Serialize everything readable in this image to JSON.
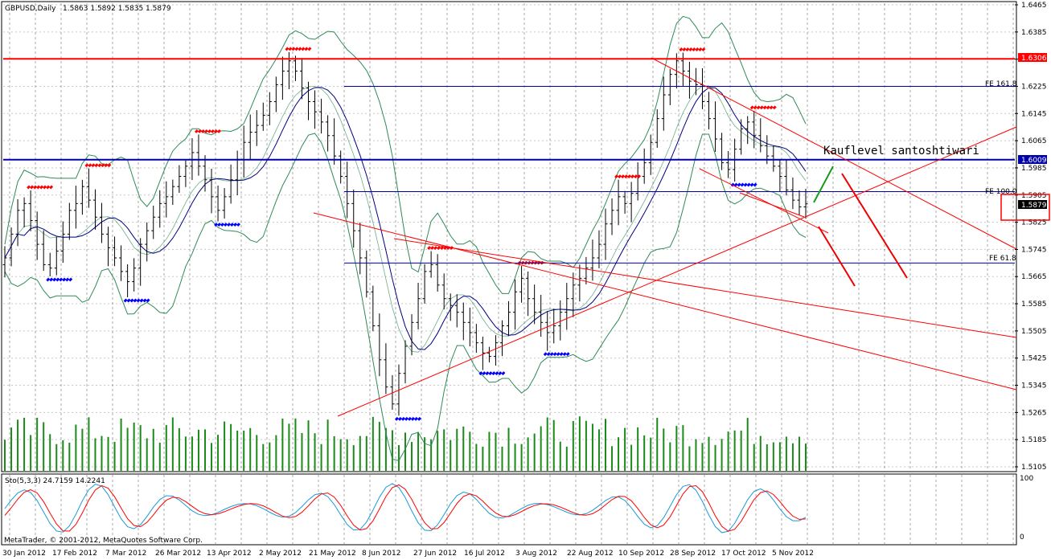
{
  "header": {
    "symbol_label": "GBPUSD,Daily",
    "ohlc": "1.5863 1.5892 1.5835 1.5879"
  },
  "footer": {
    "copyright": "MetaTrader, © 2001-2012, MetaQuotes Software Corp."
  },
  "annotation": "Kauflevel santoshtiwari",
  "colors": {
    "up_marker": "#ff0000",
    "down_marker": "#0000ff",
    "bands": "#2e8b57",
    "volume": "#1a8a1a",
    "ma": "#000080",
    "stoch_main": "#1a9ad6",
    "stoch_signal": "#ff0000"
  },
  "chart_data": {
    "type": "candlestick",
    "symbol": "GBPUSD",
    "timeframe": "Daily",
    "y_ticks": [
      "1.6465",
      "1.6385",
      "1.6305",
      "1.6225",
      "1.6145",
      "1.6065",
      "1.5985",
      "1.5905",
      "1.5825",
      "1.5745",
      "1.5665",
      "1.5585",
      "1.5505",
      "1.5425",
      "1.5345",
      "1.5265",
      "1.5185",
      "1.5105"
    ],
    "x_labels": [
      "30 Jan 2012",
      "17 Feb 2012",
      "7 Mar 2012",
      "26 Mar 2012",
      "13 Apr 2012",
      "2 May 2012",
      "21 May 2012",
      "8 Jun 2012",
      "27 Jun 2012",
      "16 Jul 2012",
      "3 Aug 2012",
      "22 Aug 2012",
      "10 Sep 2012",
      "28 Sep 2012",
      "17 Oct 2012",
      "5 Nov 2012"
    ],
    "horizontal_levels": [
      {
        "value": 1.6306,
        "label": "1.6306",
        "color": "#ff0000"
      },
      {
        "value": 1.6009,
        "label": "1.6009",
        "color": "#0000aa"
      }
    ],
    "fib_levels": [
      {
        "label": "FE 161.8",
        "value": 1.6225
      },
      {
        "label": "FE 100.0",
        "value": 1.5915
      },
      {
        "label": "FE 61.8",
        "value": 1.5705
      }
    ],
    "current_price": {
      "value": 1.5879,
      "label": "1.5879"
    },
    "close_series": [
      1.572,
      1.579,
      1.586,
      1.588,
      1.583,
      1.576,
      1.57,
      1.569,
      1.574,
      1.579,
      1.586,
      1.588,
      1.593,
      1.589,
      1.584,
      1.579,
      1.575,
      1.572,
      1.568,
      1.565,
      1.569,
      1.576,
      1.58,
      1.584,
      1.588,
      1.59,
      1.593,
      1.596,
      1.599,
      1.603,
      1.599,
      1.595,
      1.59,
      1.586,
      1.59,
      1.595,
      1.601,
      1.606,
      1.609,
      1.611,
      1.614,
      1.618,
      1.623,
      1.627,
      1.63,
      1.627,
      1.622,
      1.618,
      1.615,
      1.612,
      1.608,
      1.602,
      1.596,
      1.588,
      1.58,
      1.572,
      1.562,
      1.552,
      1.542,
      1.534,
      1.529,
      1.538,
      1.546,
      1.553,
      1.56,
      1.568,
      1.57,
      1.564,
      1.56,
      1.558,
      1.556,
      1.553,
      1.55,
      1.547,
      1.544,
      1.543,
      1.547,
      1.552,
      1.556,
      1.562,
      1.566,
      1.56,
      1.556,
      1.553,
      1.55,
      1.552,
      1.556,
      1.56,
      1.564,
      1.566,
      1.569,
      1.572,
      1.576,
      1.582,
      1.586,
      1.59,
      1.588,
      1.591,
      1.596,
      1.6,
      1.606,
      1.613,
      1.62,
      1.626,
      1.63,
      1.627,
      1.624,
      1.623,
      1.618,
      1.613,
      1.607,
      1.6,
      1.598,
      1.604,
      1.61,
      1.612,
      1.608,
      1.605,
      1.602,
      1.599,
      1.596,
      1.592,
      1.589,
      1.587,
      1.5879
    ],
    "stochastic": {
      "label": "Sto(5,3,3) 24.7159 14.2241",
      "main": 24.7159,
      "signal": 14.2241,
      "scale": [
        "100",
        "0"
      ]
    }
  }
}
